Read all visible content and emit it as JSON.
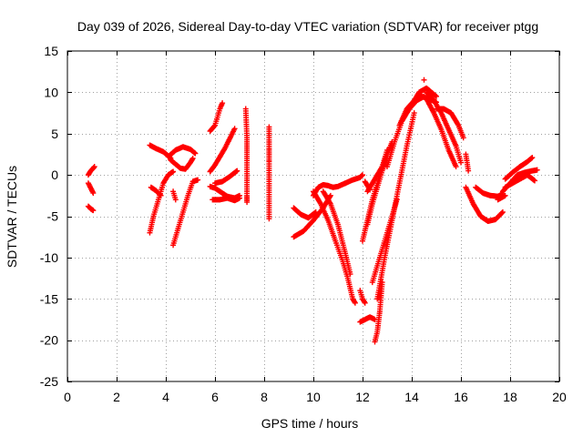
{
  "chart_data": {
    "type": "scatter",
    "title": "Day 039 of 2026, Sidereal Day-to-day VTEC variation (SDTVAR) for receiver ptgg",
    "xlabel": "GPS time / hours",
    "ylabel": "SDTVAR / TECUs",
    "xlim": [
      0,
      20
    ],
    "ylim": [
      -25,
      15
    ],
    "x_ticks": [
      0,
      2,
      4,
      6,
      8,
      10,
      12,
      14,
      16,
      18,
      20
    ],
    "y_ticks": [
      -25,
      -20,
      -15,
      -10,
      -5,
      0,
      5,
      10,
      15
    ],
    "grid": true,
    "marker": "+",
    "color": "#ff0000",
    "segments": [
      {
        "x": [
          0.85,
          0.95,
          1.05,
          1.1
        ],
        "y": [
          0.0,
          0.5,
          0.8,
          1.0
        ]
      },
      {
        "x": [
          0.85,
          0.95,
          1.05
        ],
        "y": [
          -1.0,
          -1.6,
          -2.2
        ]
      },
      {
        "x": [
          0.85,
          0.95,
          1.05
        ],
        "y": [
          -3.8,
          -4.1,
          -4.3
        ]
      },
      {
        "x": [
          3.35,
          3.6,
          3.9,
          4.1,
          4.2
        ],
        "y": [
          3.6,
          3.2,
          2.8,
          2.3,
          2.0
        ]
      },
      {
        "x": [
          4.1,
          4.4,
          4.7,
          5.0,
          5.2
        ],
        "y": [
          2.2,
          3.0,
          3.4,
          3.1,
          2.6
        ]
      },
      {
        "x": [
          4.2,
          4.4,
          4.6,
          4.8,
          5.0,
          5.1
        ],
        "y": [
          1.8,
          1.3,
          0.8,
          0.7,
          1.5,
          2.0
        ]
      },
      {
        "x": [
          3.35,
          3.5,
          3.7,
          3.9,
          4.1,
          4.3
        ],
        "y": [
          -7.0,
          -5.0,
          -3.0,
          -1.0,
          0.0,
          0.4
        ]
      },
      {
        "x": [
          3.4,
          3.6,
          3.8
        ],
        "y": [
          -1.5,
          -1.9,
          -2.5
        ]
      },
      {
        "x": [
          4.3,
          4.5,
          4.7,
          4.9,
          5.1,
          5.3
        ],
        "y": [
          -8.5,
          -6.5,
          -4.5,
          -2.5,
          -0.8,
          -0.6
        ]
      },
      {
        "x": [
          4.3,
          4.4
        ],
        "y": [
          -2.0,
          -3.0
        ]
      },
      {
        "x": [
          5.8,
          6.0,
          6.1,
          6.2,
          6.3
        ],
        "y": [
          5.3,
          6.0,
          7.0,
          8.0,
          8.7
        ]
      },
      {
        "x": [
          5.8,
          6.0,
          6.2,
          6.4,
          6.6,
          6.8
        ],
        "y": [
          0.4,
          1.2,
          2.2,
          3.2,
          4.4,
          5.6
        ]
      },
      {
        "x": [
          5.8,
          6.0,
          6.2,
          6.5,
          6.8,
          7.0
        ],
        "y": [
          -1.4,
          -1.6,
          -2.0,
          -2.6,
          -2.8,
          -2.5
        ]
      },
      {
        "x": [
          6.0,
          6.3,
          6.6,
          6.9
        ],
        "y": [
          -1.0,
          -0.8,
          -0.2,
          0.5
        ]
      },
      {
        "x": [
          5.9,
          6.2,
          6.5,
          6.8,
          7.0
        ],
        "y": [
          -3.0,
          -3.0,
          -2.8,
          -3.1,
          -2.8
        ]
      },
      {
        "x": [
          7.25,
          7.3,
          7.3,
          7.3,
          7.3,
          7.3
        ],
        "y": [
          8.0,
          4.5,
          2.0,
          -2.5,
          -2.7,
          -3.3
        ]
      },
      {
        "x": [
          8.2,
          8.2,
          8.2,
          8.2,
          8.2,
          8.2
        ],
        "y": [
          5.8,
          3.2,
          3.0,
          1.8,
          1.6,
          -5.3
        ]
      },
      {
        "x": [
          9.2,
          9.6,
          10.0,
          10.4,
          10.7
        ],
        "y": [
          -7.5,
          -6.8,
          -5.5,
          -4.0,
          -2.5
        ]
      },
      {
        "x": [
          9.2,
          9.5,
          9.8,
          10.1
        ],
        "y": [
          -4.0,
          -4.8,
          -5.2,
          -4.5
        ]
      },
      {
        "x": [
          10.0,
          10.2,
          10.4,
          10.6,
          10.8,
          11.0,
          11.3
        ],
        "y": [
          -2.5,
          -1.5,
          -1.2,
          -1.3,
          -1.5,
          -1.4,
          -1.0
        ]
      },
      {
        "x": [
          11.3,
          11.6,
          11.9,
          12.0
        ],
        "y": [
          -1.0,
          -0.6,
          -0.3,
          0.0
        ]
      },
      {
        "x": [
          10.0,
          10.3,
          10.6,
          10.9,
          11.2,
          11.4,
          11.6,
          11.7
        ],
        "y": [
          -2.0,
          -3.5,
          -5.5,
          -8.0,
          -10.5,
          -12.5,
          -15.0,
          -15.5
        ]
      },
      {
        "x": [
          10.4,
          10.7,
          11.0,
          11.3,
          11.5
        ],
        "y": [
          -2.0,
          -3.5,
          -6.0,
          -9.5,
          -12.0
        ]
      },
      {
        "x": [
          11.9,
          12.0,
          12.1
        ],
        "y": [
          -14.0,
          -15.0,
          -15.5
        ]
      },
      {
        "x": [
          11.9,
          12.1,
          12.3,
          12.5
        ],
        "y": [
          -17.8,
          -17.5,
          -17.2,
          -17.5
        ]
      },
      {
        "x": [
          12.5,
          12.6,
          12.7,
          12.8
        ],
        "y": [
          -20.2,
          -19.0,
          -16.5,
          -13.0
        ]
      },
      {
        "x": [
          12.0,
          12.2,
          12.4,
          12.6,
          12.8,
          13.0
        ],
        "y": [
          -8.0,
          -5.5,
          -3.0,
          -1.0,
          1.0,
          3.0
        ]
      },
      {
        "x": [
          12.2,
          12.4,
          12.6,
          12.8,
          13.0
        ],
        "y": [
          -6.0,
          -3.5,
          -1.5,
          0.5,
          2.0
        ]
      },
      {
        "x": [
          12.2,
          12.4,
          12.6,
          12.8,
          13.0,
          13.2
        ],
        "y": [
          -2.0,
          -1.0,
          0.0,
          1.0,
          2.5,
          4.0
        ]
      },
      {
        "x": [
          12.1,
          12.3
        ],
        "y": [
          -0.8,
          -1.8
        ]
      },
      {
        "x": [
          12.4,
          12.6,
          12.8,
          13.0,
          13.2,
          13.4
        ],
        "y": [
          -13.0,
          -11.0,
          -9.0,
          -7.0,
          -5.0,
          -3.0
        ]
      },
      {
        "x": [
          12.6,
          12.9,
          13.2,
          13.5,
          13.8,
          14.1
        ],
        "y": [
          -15.0,
          -10.0,
          -5.5,
          -1.0,
          3.5,
          7.5
        ]
      },
      {
        "x": [
          13.0,
          13.3,
          13.6,
          13.9,
          14.2,
          14.5
        ],
        "y": [
          1.0,
          4.0,
          6.5,
          8.0,
          9.0,
          9.5
        ]
      },
      {
        "x": [
          13.5,
          13.8,
          14.1,
          14.4,
          14.7,
          15.0
        ],
        "y": [
          6.0,
          8.0,
          9.0,
          9.5,
          9.2,
          8.8
        ]
      },
      {
        "x": [
          14.0,
          14.3,
          14.6,
          14.8,
          15.0
        ],
        "y": [
          8.5,
          10.0,
          10.5,
          10.0,
          9.5
        ]
      },
      {
        "x": [
          14.5
        ],
        "y": [
          11.5
        ]
      },
      {
        "x": [
          14.6,
          14.9,
          15.2,
          15.5,
          15.8,
          16.0
        ],
        "y": [
          10.0,
          9.0,
          7.5,
          5.5,
          3.5,
          1.5
        ]
      },
      {
        "x": [
          14.6,
          14.9,
          15.2,
          15.5,
          15.8
        ],
        "y": [
          9.2,
          7.5,
          5.5,
          3.0,
          1.0
        ]
      },
      {
        "x": [
          15.0,
          15.3,
          15.6,
          15.9,
          16.1
        ],
        "y": [
          8.0,
          8.0,
          7.5,
          6.0,
          4.5
        ]
      },
      {
        "x": [
          16.2,
          16.3
        ],
        "y": [
          2.5,
          0.5
        ]
      },
      {
        "x": [
          16.2,
          16.5,
          16.8,
          17.1,
          17.4,
          17.7
        ],
        "y": [
          -1.5,
          -3.5,
          -5.0,
          -5.6,
          -5.4,
          -4.5
        ]
      },
      {
        "x": [
          16.6,
          16.9,
          17.2,
          17.5,
          17.7
        ],
        "y": [
          -1.5,
          -2.2,
          -2.5,
          -2.6,
          -2.3
        ]
      },
      {
        "x": [
          17.7,
          18.0,
          18.3,
          18.6,
          18.9,
          19.1
        ],
        "y": [
          -2.0,
          -1.0,
          0.0,
          0.3,
          0.5,
          0.6
        ]
      },
      {
        "x": [
          17.8,
          18.1,
          18.4,
          18.7,
          18.9
        ],
        "y": [
          -0.5,
          0.3,
          1.0,
          1.6,
          2.1
        ]
      },
      {
        "x": [
          17.8,
          18.1,
          18.4,
          18.7,
          19.0
        ],
        "y": [
          -1.5,
          -1.0,
          -0.5,
          0.0,
          -0.7
        ]
      },
      {
        "x": [
          17.5,
          17.8
        ],
        "y": [
          -3.0,
          -2.5
        ]
      }
    ]
  }
}
